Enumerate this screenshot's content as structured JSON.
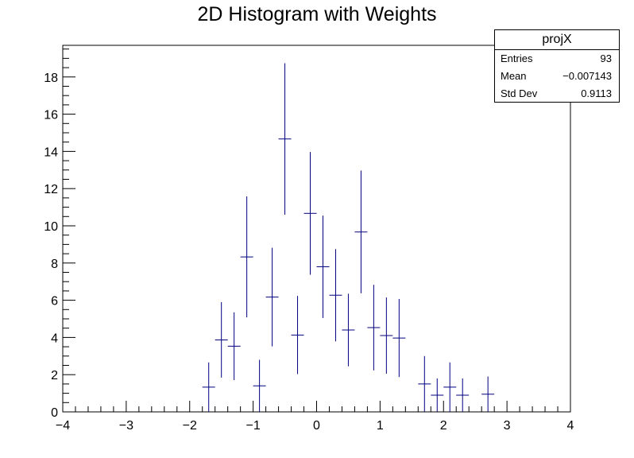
{
  "chart_data": {
    "type": "histogram-errorbars",
    "title": "2D Histogram with Weights",
    "xlabel": "",
    "ylabel": "",
    "xlim": [
      -4,
      4
    ],
    "ylim": [
      0,
      19.7
    ],
    "x_ticks": [
      "-4",
      "-3",
      "-2",
      "-1",
      "0",
      "1",
      "2",
      "3",
      "4"
    ],
    "y_ticks": [
      "0",
      "2",
      "4",
      "6",
      "8",
      "10",
      "12",
      "14",
      "16",
      "18"
    ],
    "bin_width": 0.2,
    "series": [
      {
        "color": "#000080",
        "points": [
          {
            "x": -1.7,
            "y": 1.33,
            "err": 1.33
          },
          {
            "x": -1.5,
            "y": 3.87,
            "err": 2.03
          },
          {
            "x": -1.3,
            "y": 3.53,
            "err": 1.82
          },
          {
            "x": -1.1,
            "y": 8.33,
            "err": 3.25
          },
          {
            "x": -0.9,
            "y": 1.4,
            "err": 1.4
          },
          {
            "x": -0.7,
            "y": 6.17,
            "err": 2.65
          },
          {
            "x": -0.5,
            "y": 14.67,
            "err": 4.07
          },
          {
            "x": -0.3,
            "y": 4.13,
            "err": 2.1
          },
          {
            "x": -0.1,
            "y": 10.67,
            "err": 3.3
          },
          {
            "x": 0.1,
            "y": 7.8,
            "err": 2.75
          },
          {
            "x": 0.3,
            "y": 6.27,
            "err": 2.48
          },
          {
            "x": 0.5,
            "y": 4.4,
            "err": 1.95
          },
          {
            "x": 0.7,
            "y": 9.67,
            "err": 3.3
          },
          {
            "x": 0.9,
            "y": 4.53,
            "err": 2.3
          },
          {
            "x": 1.1,
            "y": 4.1,
            "err": 2.05
          },
          {
            "x": 1.3,
            "y": 3.97,
            "err": 2.1
          },
          {
            "x": 1.7,
            "y": 1.5,
            "err": 1.5
          },
          {
            "x": 1.9,
            "y": 0.9,
            "err": 0.9
          },
          {
            "x": 2.1,
            "y": 1.33,
            "err": 1.33
          },
          {
            "x": 2.3,
            "y": 0.9,
            "err": 0.9
          },
          {
            "x": 2.7,
            "y": 0.95,
            "err": 0.95
          }
        ]
      }
    ],
    "grid": false,
    "legend": "none"
  },
  "stats": {
    "title": "projX",
    "rows": [
      {
        "label": "Entries",
        "value": "93"
      },
      {
        "label": "Mean",
        "value": "−0.007143"
      },
      {
        "label": "Std Dev",
        "value": "0.9113"
      }
    ]
  }
}
